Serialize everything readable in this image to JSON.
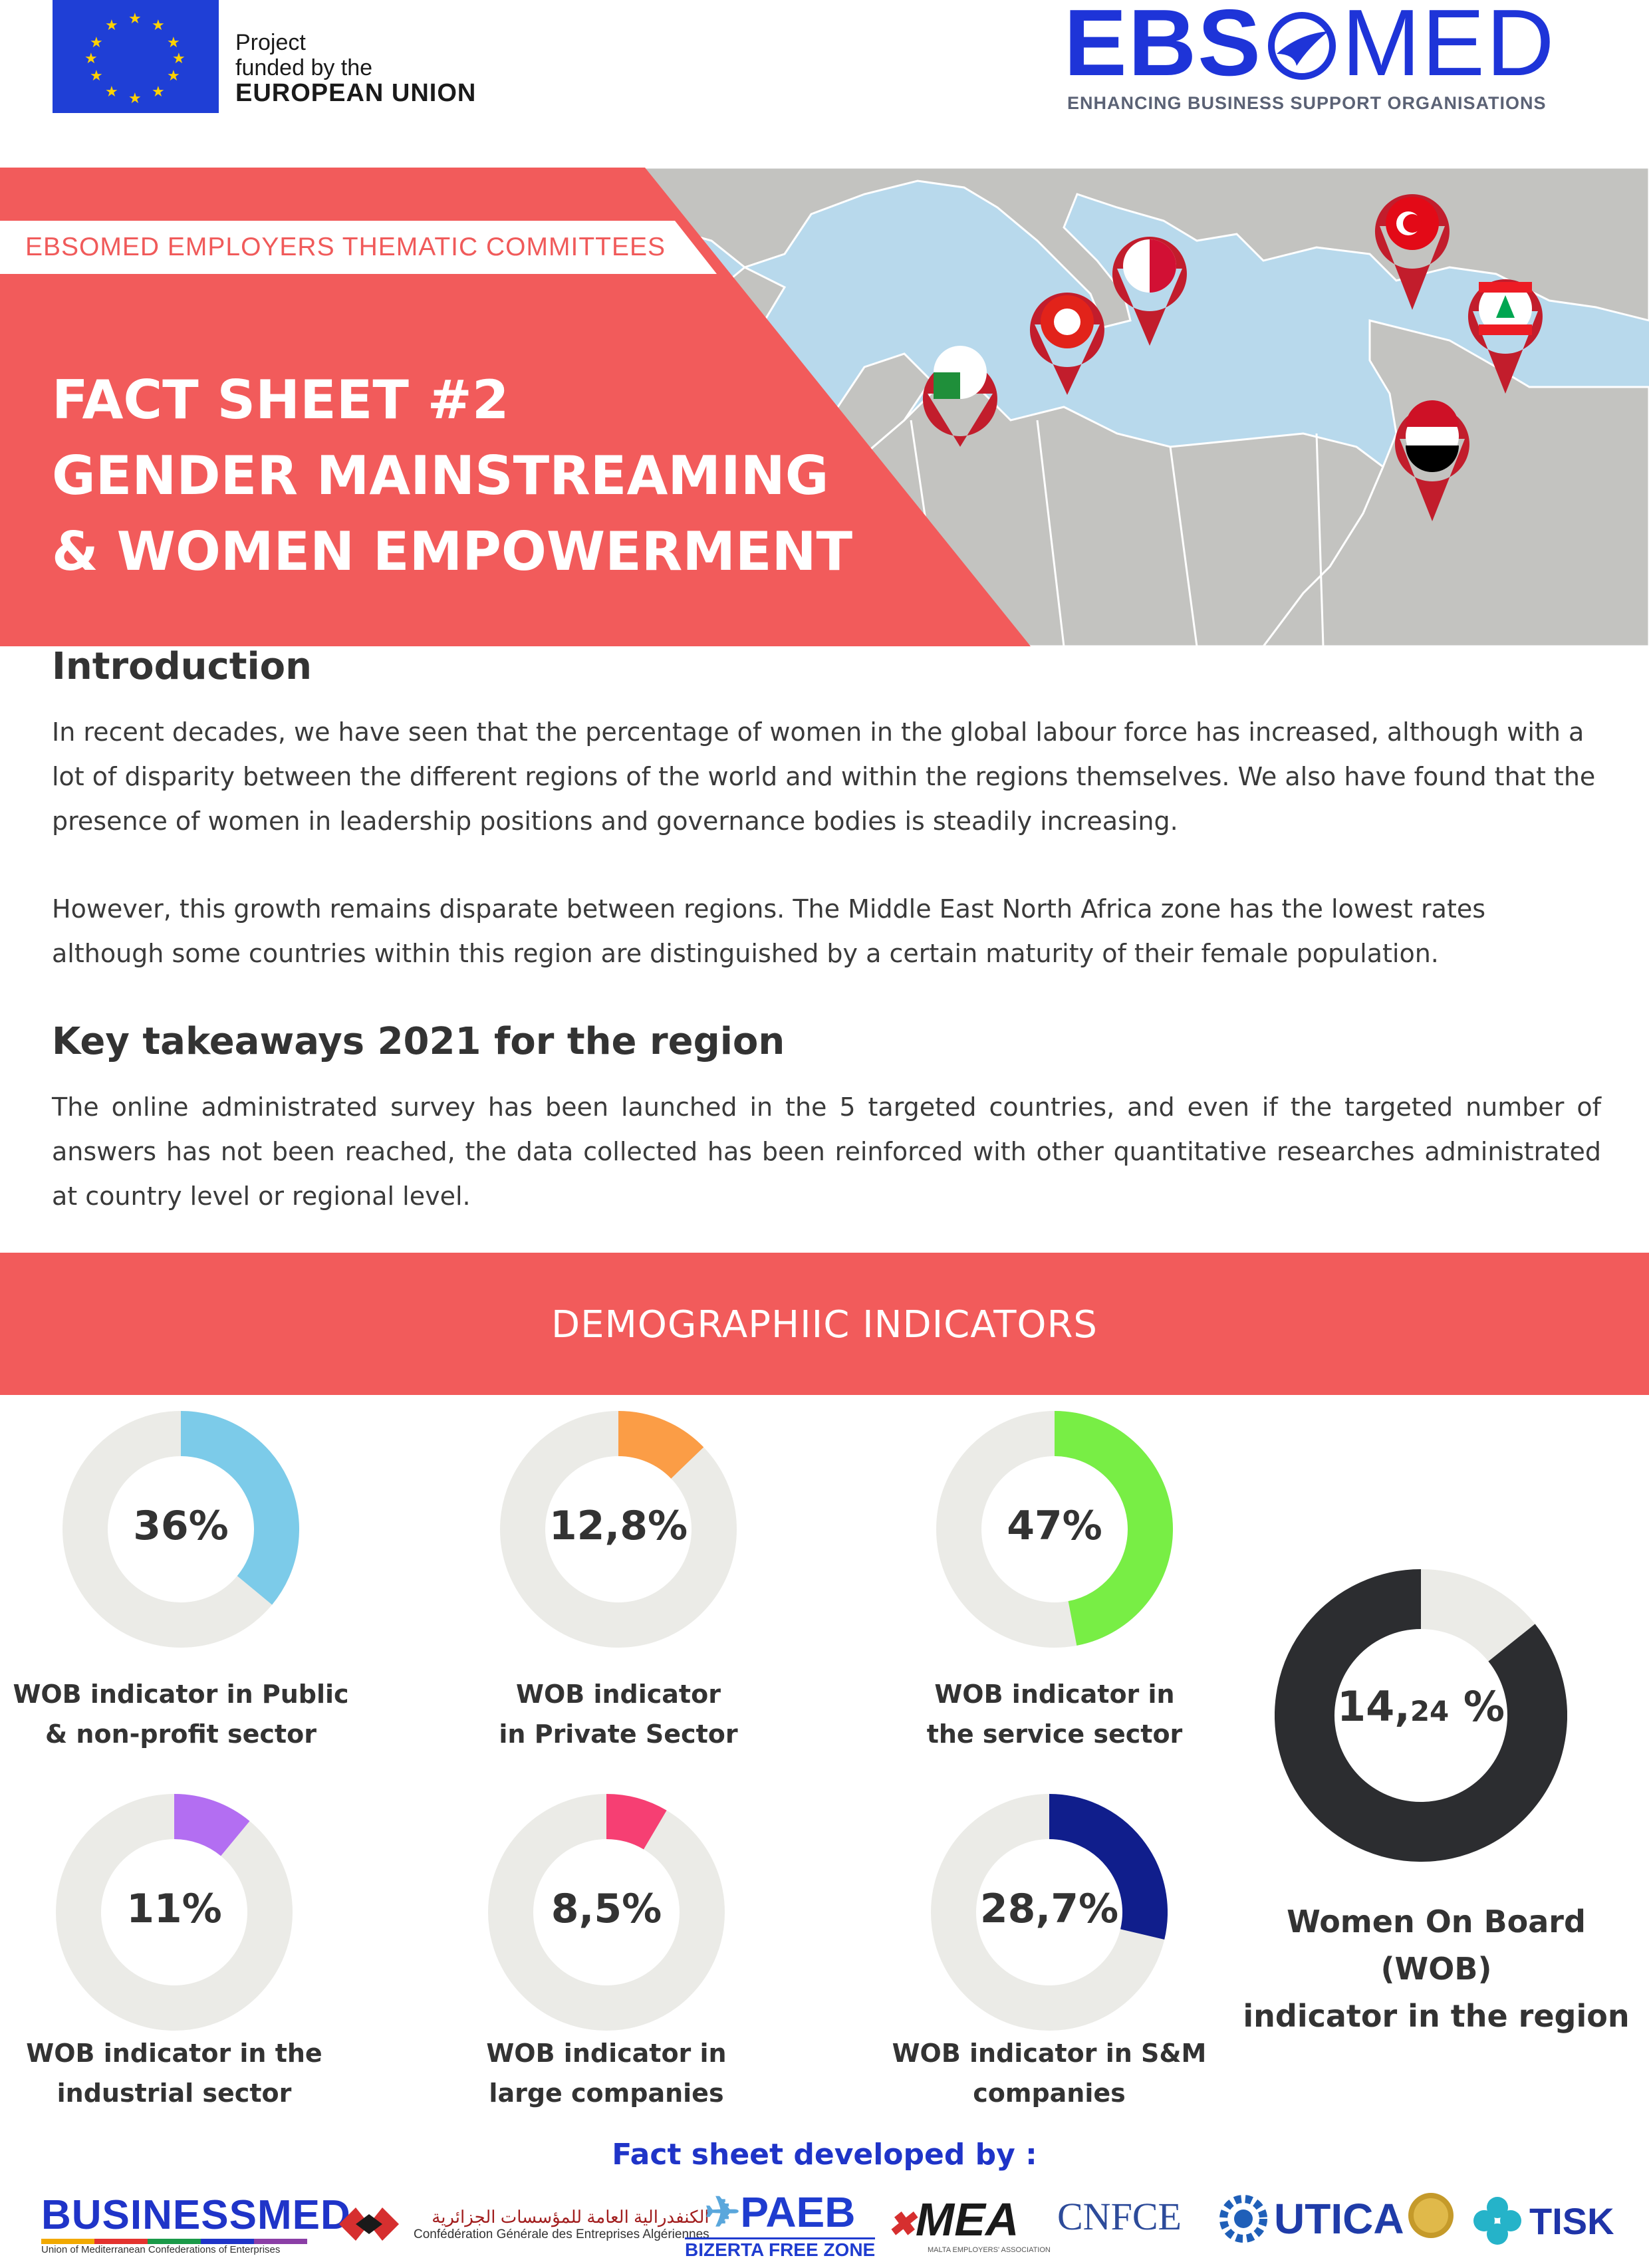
{
  "header": {
    "eu_line1": "Project",
    "eu_line2": "funded by the",
    "eu_line3": "EUROPEAN UNION",
    "logo_part1": "EBS",
    "logo_part2": "MED",
    "logo_tagline": "ENHANCING BUSINESS SUPPORT ORGANISATIONS"
  },
  "banner": {
    "label": "EBSOMED EMPLOYERS THEMATIC COMMITTEES",
    "title_line1": "FACT SHEET #2",
    "title_line2": "GENDER MAINSTREAMING",
    "title_line3": "& WOMEN EMPOWERMENT"
  },
  "intro": {
    "heading": "Introduction",
    "p1": "In recent decades, we have seen that the percentage of women in the global labour force has increased, although with a lot of disparity between the different regions of the world and within the regions themselves. We also have found that the presence of women in leadership positions and governance bodies is steadily increasing.",
    "p2": "However, this growth remains disparate between regions. The Middle East North Africa zone has the lowest rates although some countries within this region are distinguished by a certain maturity of their female population."
  },
  "takeaways": {
    "heading": "Key takeaways 2021 for the region",
    "p1": "The online administrated survey has been launched in the 5 targeted countries, and even if the targeted number of answers has not been reached, the data collected has been reinforced with other quantitative researches administrated at country level or regional level."
  },
  "demographics": {
    "title": "DEMOGRAPHIIC INDICATORS",
    "indicators": [
      {
        "value": "36%",
        "fraction": 0.36,
        "color": "#7ccbe9",
        "line1": "WOB indicator in Public",
        "line2": "& non-profit sector"
      },
      {
        "value": "12,8%",
        "fraction": 0.128,
        "color": "#fb9d46",
        "line1": "WOB indicator",
        "line2": "in Private Sector"
      },
      {
        "value": "47%",
        "fraction": 0.47,
        "color": "#78ee45",
        "line1": "WOB indicator in",
        "line2": "the service sector"
      },
      {
        "value": "11%",
        "fraction": 0.11,
        "color": "#b36ef2",
        "line1": "WOB indicator in the",
        "line2": "industrial sector"
      },
      {
        "value": "8,5%",
        "fraction": 0.085,
        "color": "#f63f73",
        "line1": "WOB indicator in",
        "line2": "large companies"
      },
      {
        "value": "28,7%",
        "fraction": 0.287,
        "color": "#101e8c",
        "line1": "WOB indicator in S&M",
        "line2": "companies"
      }
    ],
    "overall": {
      "value_main": "14,",
      "value_decimal": "24",
      "value_suffix": " %",
      "fraction": 0.1424,
      "dark_color": "#2c2d30",
      "line1": "Women On Board",
      "line2": "(WOB)",
      "line3": "indicator in the region"
    },
    "track_color": "#ebebe7"
  },
  "footer": {
    "developed_by": "Fact sheet developed by :",
    "partners": {
      "businessmed": "BUSINESSMED",
      "businessmed_sub": "Union of Mediterranean Confederations of Enterprises",
      "cgea_ar": "الكنفدرالية العامة للمؤسسات الجزائرية",
      "cgea": "Confédération Générale des Entreprises Algériennes",
      "paeb": "PAEB",
      "paeb_sub": "BIZERTA FREE ZONE",
      "mea": "MEA",
      "mea_sub": "MALTA EMPLOYERS' ASSOCIATION",
      "cnfce": "CNFCE",
      "utica": "UTICA",
      "tisk": "TISK"
    }
  },
  "colors": {
    "accent": "#f25b5b",
    "brand_blue": "#1e34d8",
    "sea": "#8fc6ea",
    "land": "#bfbfbb"
  }
}
